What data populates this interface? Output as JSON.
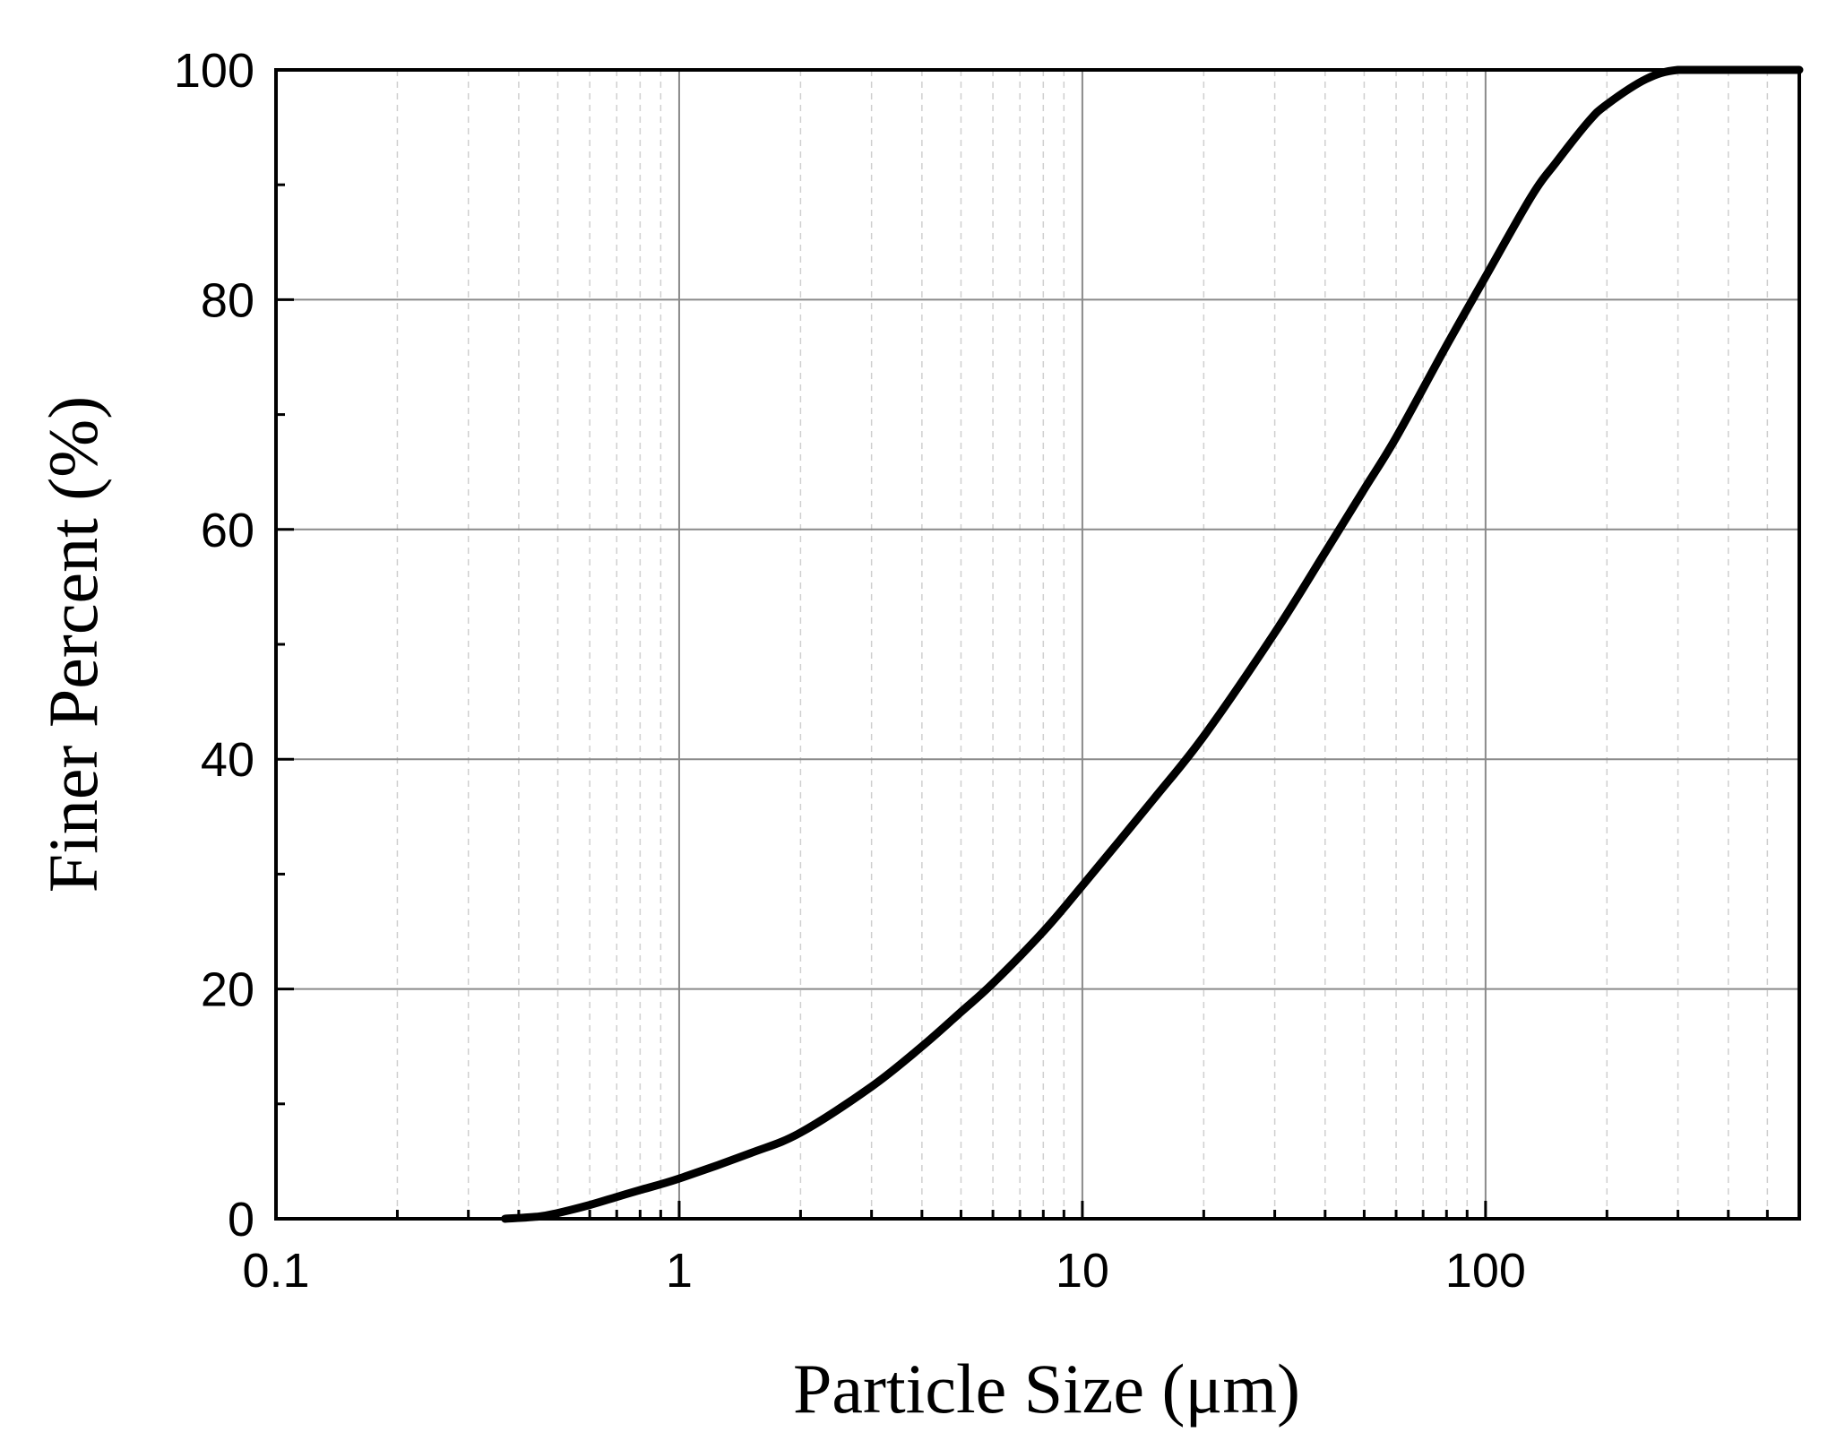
{
  "chart_data": {
    "type": "line",
    "title": "",
    "xlabel": "Particle Size (μm)",
    "ylabel": "Finer Percent (%)",
    "x_scale": "log",
    "xlim": [
      0.1,
      600
    ],
    "ylim": [
      0,
      100
    ],
    "x_ticks": [
      0.1,
      1,
      10,
      100
    ],
    "x_tick_labels": [
      "0.1",
      "1",
      "10",
      "100"
    ],
    "y_ticks": [
      0,
      20,
      40,
      60,
      80,
      100
    ],
    "y_tick_labels": [
      "0",
      "20",
      "40",
      "60",
      "80",
      "100"
    ],
    "grid": true,
    "legend": "none",
    "series": [
      {
        "color": "#000000",
        "x": [
          0.37,
          0.45,
          0.5,
          0.6,
          0.7,
          0.8,
          1.0,
          1.5,
          2,
          3,
          4,
          5,
          6,
          8,
          10,
          15,
          20,
          30,
          40,
          50,
          60,
          80,
          100,
          130,
          150,
          180,
          200,
          250,
          300,
          400,
          500,
          600
        ],
        "y": [
          0,
          0.2,
          0.5,
          1.2,
          1.9,
          2.5,
          3.5,
          5.7,
          7.5,
          11.5,
          15,
          18,
          20.5,
          25,
          29,
          36.5,
          42,
          51,
          58,
          63.5,
          68,
          76,
          82,
          89,
          92,
          95.5,
          97,
          99.2,
          100,
          100,
          100,
          100
        ]
      }
    ]
  }
}
